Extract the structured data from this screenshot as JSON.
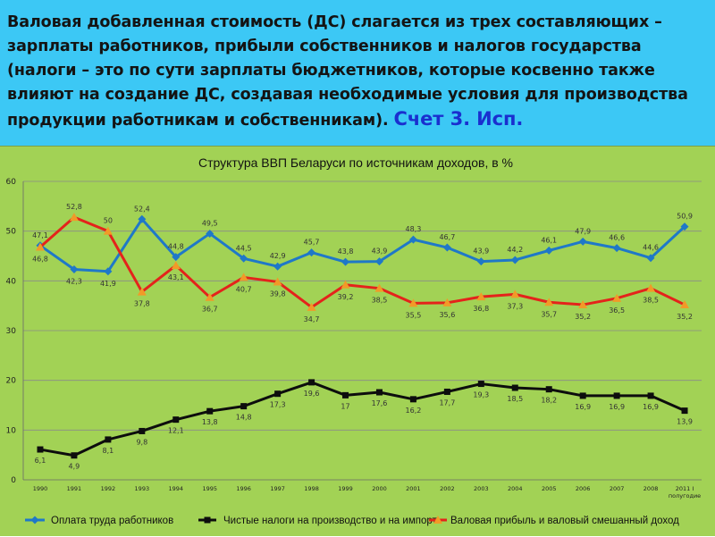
{
  "header": {
    "text": "Валовая добавленная стоимость (ДС) слагается из трех составляющих – зарплаты работников, прибыли собственников и налогов государства (налоги – это по сути зарплаты бюджетников, которые косвенно также влияют на создание ДС, создавая необходимые условия для производства продукции работникам и собственникам).",
    "accent": "Счет 3. Исп."
  },
  "colors": {
    "header_bg": "#3cc8f5",
    "chart_bg": "#a2d255",
    "wages": "#1f78c8",
    "taxes": "#0d0d0d",
    "profit": "#e4231b",
    "profit_marker": "#f19a28"
  },
  "chart_data": {
    "type": "line",
    "title": "Структура ВВП Беларуси по источникам доходов, в %",
    "categories": [
      "1990",
      "1991",
      "1992",
      "1993",
      "1994",
      "1995",
      "1996",
      "1997",
      "1998",
      "1999",
      "2000",
      "2001",
      "2002",
      "2003",
      "2004",
      "2005",
      "2006",
      "2007",
      "2008",
      "2011 I"
    ],
    "category_sublabels": {
      "2011 I": "полугодие"
    },
    "ylim": [
      0,
      60
    ],
    "yticks": [
      "0",
      "10",
      "20",
      "30",
      "40",
      "50",
      "60"
    ],
    "grid": true,
    "legend_position": "bottom",
    "series": [
      {
        "name": "Оплата труда работников",
        "marker": "diamond",
        "values": [
          47.1,
          42.3,
          41.9,
          52.4,
          44.8,
          49.5,
          44.5,
          42.9,
          45.7,
          43.8,
          43.9,
          48.3,
          46.7,
          43.9,
          44.2,
          46.1,
          47.9,
          46.6,
          44.6,
          50.9
        ],
        "labels": [
          "47,1",
          "42,3",
          "41,9",
          "52,4",
          "44,8",
          "49,5",
          "44,5",
          "42,9",
          "45,7",
          "43,8",
          "43,9",
          "48,3",
          "46,7",
          "43,9",
          "44,2",
          "46,1",
          "47,9",
          "46,6",
          "44,6",
          "50,9"
        ]
      },
      {
        "name": "Чистые налоги на производство и на импорт",
        "marker": "square",
        "values": [
          6.1,
          4.9,
          8.1,
          9.8,
          12.1,
          13.8,
          14.8,
          17.3,
          19.6,
          17,
          17.6,
          16.2,
          17.7,
          19.3,
          18.5,
          18.2,
          16.9,
          16.9,
          16.9,
          13.9
        ],
        "labels": [
          "6,1",
          "4,9",
          "8,1",
          "9,8",
          "12,1",
          "13,8",
          "14,8",
          "17,3",
          "19,6",
          "17",
          "17,6",
          "16,2",
          "17,7",
          "19,3",
          "18,5",
          "18,2",
          "16,9",
          "16,9",
          "16,9",
          "13,9"
        ]
      },
      {
        "name": "Валовая прибыль и валовый смешанный доход",
        "marker": "triangle",
        "values": [
          46.8,
          52.8,
          50,
          37.8,
          43.1,
          36.7,
          40.7,
          39.8,
          34.7,
          39.2,
          38.5,
          35.5,
          35.6,
          36.8,
          37.3,
          35.7,
          35.2,
          36.5,
          38.5,
          35.2
        ],
        "labels": [
          "46,8",
          "52,8",
          "50",
          "37,8",
          "43,1",
          "36,7",
          "40,7",
          "39,8",
          "34,7",
          "39,2",
          "38,5",
          "35,5",
          "35,6",
          "36,8",
          "37,3",
          "35,7",
          "35,2",
          "36,5",
          "38,5",
          "35,2"
        ]
      }
    ]
  }
}
